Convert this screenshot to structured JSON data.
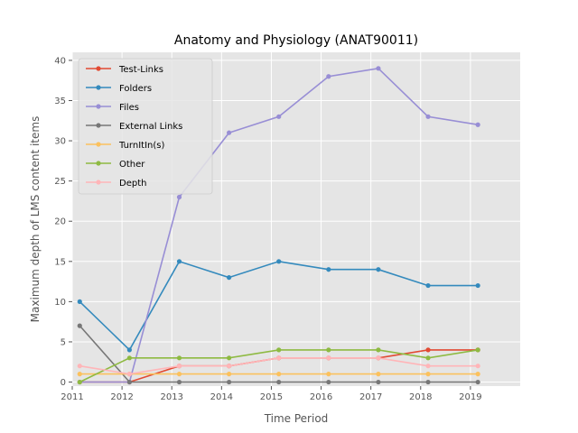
{
  "chart_data": {
    "type": "line",
    "title": "Anatomy and Physiology (ANAT90011)",
    "xlabel": "Time Period",
    "ylabel": "Maximum depth of LMS content items",
    "xlim": [
      2011,
      2020
    ],
    "ylim": [
      0,
      40
    ],
    "xticks": [
      "2011",
      "2012",
      "2013",
      "2014",
      "2015",
      "2016",
      "2017",
      "2018",
      "2019"
    ],
    "yticks": [
      "0",
      "5",
      "10",
      "15",
      "20",
      "25",
      "30",
      "35",
      "40"
    ],
    "grid": true,
    "legend_position": "top-left",
    "x": [
      2011.15,
      2012.15,
      2013.15,
      2014.15,
      2015.15,
      2016.15,
      2017.15,
      2018.15,
      2019.15
    ],
    "series": [
      {
        "name": "Test-Links",
        "color": "#E24A33",
        "values": [
          0,
          0,
          2,
          2,
          3,
          3,
          3,
          4,
          4
        ]
      },
      {
        "name": "Folders",
        "color": "#348ABD",
        "values": [
          10,
          4,
          15,
          13,
          15,
          14,
          14,
          12,
          12
        ]
      },
      {
        "name": "Files",
        "color": "#988ED5",
        "values": [
          0,
          0,
          23,
          31,
          33,
          38,
          39,
          33,
          32
        ]
      },
      {
        "name": "External Links",
        "color": "#777777",
        "values": [
          7,
          0,
          0,
          0,
          0,
          0,
          0,
          0,
          0
        ]
      },
      {
        "name": "TurnItIn(s)",
        "color": "#FBC15E",
        "values": [
          1,
          1,
          1,
          1,
          1,
          1,
          1,
          1,
          1
        ]
      },
      {
        "name": "Other",
        "color": "#8EBA42",
        "values": [
          0,
          3,
          3,
          3,
          4,
          4,
          4,
          3,
          4
        ]
      },
      {
        "name": "Depth",
        "color": "#FFB5B8",
        "values": [
          2,
          1,
          2,
          2,
          3,
          3,
          3,
          2,
          2
        ]
      }
    ]
  }
}
